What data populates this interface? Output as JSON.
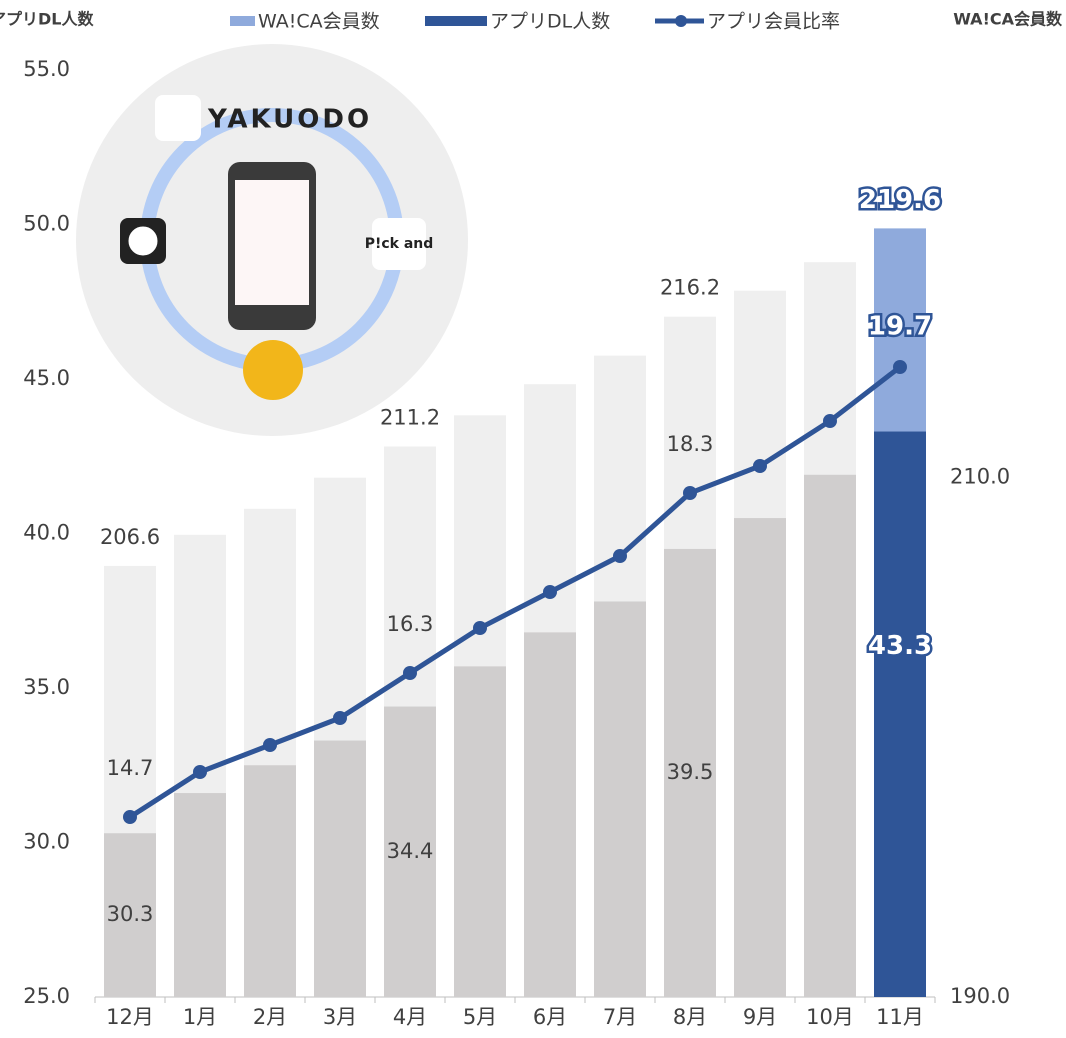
{
  "chart_data": {
    "type": "bar-line",
    "y_title": "アプリDL人数",
    "y2_title": "WA!CA会員数",
    "categories": [
      "12月",
      "1月",
      "2月",
      "3月",
      "4月",
      "5月",
      "6月",
      "7月",
      "8月",
      "9月",
      "10月",
      "11月"
    ],
    "series": [
      {
        "name": "WA!CA会員数",
        "kind": "bar",
        "axis": "y2",
        "color": "#8faadc",
        "colors": [
          "#efefef",
          "#efefef",
          "#efefef",
          "#efefef",
          "#efefef",
          "#efefef",
          "#efefef",
          "#efefef",
          "#efefef",
          "#efefef",
          "#efefef",
          "#8faadc"
        ],
        "values": [
          206.6,
          207.8,
          208.8,
          210.0,
          211.2,
          212.4,
          213.6,
          214.7,
          216.2,
          217.2,
          218.3,
          219.6
        ],
        "value_labels": [
          "206.6",
          null,
          null,
          null,
          "211.2",
          null,
          null,
          null,
          "216.2",
          null,
          null,
          "219.6"
        ]
      },
      {
        "name": "アプリDL人数",
        "kind": "bar",
        "axis": "y",
        "color": "#2f5597",
        "colors": [
          "#d0cece",
          "#d0cece",
          "#d0cece",
          "#d0cece",
          "#d0cece",
          "#d0cece",
          "#d0cece",
          "#d0cece",
          "#d0cece",
          "#d0cece",
          "#d0cece",
          "#2f5597"
        ],
        "values": [
          30.3,
          31.6,
          32.5,
          33.3,
          34.4,
          35.7,
          36.8,
          37.8,
          39.5,
          40.5,
          41.9,
          43.3
        ],
        "value_labels": [
          "30.3",
          null,
          null,
          null,
          "34.4",
          null,
          null,
          null,
          "39.5",
          null,
          null,
          "43.3"
        ]
      },
      {
        "name": "アプリ会員比率",
        "kind": "line",
        "axis": "y3",
        "color": "#2f5597",
        "values": [
          14.7,
          15.2,
          15.5,
          15.8,
          16.3,
          16.8,
          17.2,
          17.6,
          18.3,
          18.6,
          19.1,
          19.7
        ],
        "value_labels": [
          "14.7",
          null,
          null,
          null,
          "16.3",
          null,
          null,
          null,
          "18.3",
          null,
          null,
          "19.7"
        ]
      }
    ],
    "ylim": [
      25,
      55
    ],
    "yticks": [
      {
        "value": 25,
        "label": "25.0"
      },
      {
        "value": 30,
        "label": "30.0"
      },
      {
        "value": 35,
        "label": "35.0"
      },
      {
        "value": 40,
        "label": "40.0"
      },
      {
        "value": 45,
        "label": "45.0"
      },
      {
        "value": 50,
        "label": "50.0"
      },
      {
        "value": 55,
        "label": "55.0"
      }
    ],
    "y2lim": [
      190,
      225.7
    ],
    "y2ticks": [
      {
        "value": 190,
        "label": "190.0"
      },
      {
        "value": 210,
        "label": "210.0"
      }
    ],
    "y3lim": [
      12.7,
      23.0
    ],
    "highlight_label_color": "#ffffff",
    "illustration": {
      "logo": "YAKUODO",
      "app": "P!ck and"
    }
  }
}
